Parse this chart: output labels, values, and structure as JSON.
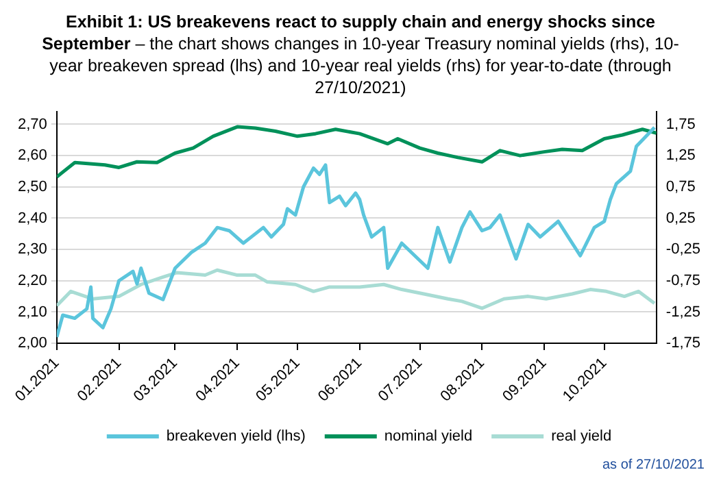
{
  "chart_data": {
    "type": "line",
    "title": "Exhibit 1: US breakevens react to supply chain and energy shocks since September",
    "subtitle": "– the chart shows changes in 10-year Treasury nominal yields (rhs), 10-year breakeven spread (lhs) and 10-year real yields (rhs) for year-to-date (through 27/10/2021)",
    "annotations": [
      "as of 27/10/2021"
    ],
    "xlim": [
      "2021-01-01",
      "2021-10-27"
    ],
    "xticks": [
      {
        "value": "2021-01-01",
        "label": "01.2021"
      },
      {
        "value": "2021-02-01",
        "label": "02.2021"
      },
      {
        "value": "2021-03-01",
        "label": "03.2021"
      },
      {
        "value": "2021-04-01",
        "label": "04.2021"
      },
      {
        "value": "2021-05-01",
        "label": "05.2021"
      },
      {
        "value": "2021-06-01",
        "label": "06.2021"
      },
      {
        "value": "2021-07-01",
        "label": "07.2021"
      },
      {
        "value": "2021-08-01",
        "label": "08.2021"
      },
      {
        "value": "2021-09-01",
        "label": "09.2021"
      },
      {
        "value": "2021-10-01",
        "label": "10.2021"
      }
    ],
    "ylim": [
      2.0,
      2.74
    ],
    "yticks": [
      {
        "value": 2.0,
        "label": "2,00"
      },
      {
        "value": 2.1,
        "label": "2,10"
      },
      {
        "value": 2.2,
        "label": "2,20"
      },
      {
        "value": 2.3,
        "label": "2,30"
      },
      {
        "value": 2.4,
        "label": "2,40"
      },
      {
        "value": 2.5,
        "label": "2,50"
      },
      {
        "value": 2.6,
        "label": "2,60"
      },
      {
        "value": 2.7,
        "label": "2,70"
      }
    ],
    "y2lim": [
      -1.75,
      1.95
    ],
    "y2ticks": [
      {
        "value": -1.75,
        "label": "-1,75"
      },
      {
        "value": -1.25,
        "label": "-1,25"
      },
      {
        "value": -0.75,
        "label": "-0,75"
      },
      {
        "value": -0.25,
        "label": "-0,25"
      },
      {
        "value": 0.25,
        "label": "0,25"
      },
      {
        "value": 0.75,
        "label": "0,75"
      },
      {
        "value": 1.25,
        "label": "1,25"
      },
      {
        "value": 1.75,
        "label": "1,75"
      }
    ],
    "grid": "y",
    "legend": "bottom",
    "marker": "none",
    "line_style": "solid",
    "series": [
      {
        "name": "breakeven yield (lhs)",
        "color": "#5bc5dc",
        "x": [
          "2021-01-01",
          "2021-01-04",
          "2021-01-10",
          "2021-01-16",
          "2021-01-18",
          "2021-01-19",
          "2021-01-24",
          "2021-01-28",
          "2021-02-01",
          "2021-02-08",
          "2021-02-10",
          "2021-02-12",
          "2021-02-16",
          "2021-02-23",
          "2021-03-01",
          "2021-03-09",
          "2021-03-16",
          "2021-03-22",
          "2021-03-28",
          "2021-04-04",
          "2021-04-08",
          "2021-04-14",
          "2021-04-18",
          "2021-04-24",
          "2021-04-26",
          "2021-04-30",
          "2021-05-04",
          "2021-05-09",
          "2021-05-12",
          "2021-05-15",
          "2021-05-17",
          "2021-05-22",
          "2021-05-25",
          "2021-05-30",
          "2021-06-01",
          "2021-06-03",
          "2021-06-07",
          "2021-06-13",
          "2021-06-15",
          "2021-06-22",
          "2021-07-05",
          "2021-07-10",
          "2021-07-16",
          "2021-07-22",
          "2021-07-26",
          "2021-08-01",
          "2021-08-05",
          "2021-08-10",
          "2021-08-18",
          "2021-08-24",
          "2021-08-30",
          "2021-09-08",
          "2021-09-13",
          "2021-09-19",
          "2021-09-26",
          "2021-10-01",
          "2021-10-04",
          "2021-10-07",
          "2021-10-14",
          "2021-10-17",
          "2021-10-23",
          "2021-10-26"
        ],
        "values": [
          2.02,
          2.09,
          2.08,
          2.11,
          2.18,
          2.08,
          2.05,
          2.11,
          2.2,
          2.23,
          2.19,
          2.24,
          2.16,
          2.14,
          2.24,
          2.29,
          2.32,
          2.37,
          2.36,
          2.32,
          2.34,
          2.37,
          2.34,
          2.38,
          2.43,
          2.41,
          2.5,
          2.56,
          2.54,
          2.57,
          2.45,
          2.47,
          2.44,
          2.48,
          2.46,
          2.41,
          2.34,
          2.37,
          2.24,
          2.32,
          2.24,
          2.37,
          2.26,
          2.37,
          2.42,
          2.36,
          2.37,
          2.41,
          2.27,
          2.38,
          2.34,
          2.39,
          2.34,
          2.28,
          2.37,
          2.39,
          2.46,
          2.51,
          2.55,
          2.63,
          2.67,
          2.69
        ]
      },
      {
        "name": "nominal yield",
        "color": "#00915a",
        "axis": "y2",
        "x": [
          "2021-01-01",
          "2021-01-10",
          "2021-01-25",
          "2021-02-01",
          "2021-02-10",
          "2021-02-20",
          "2021-03-01",
          "2021-03-10",
          "2021-03-20",
          "2021-04-01",
          "2021-04-10",
          "2021-04-20",
          "2021-05-01",
          "2021-05-10",
          "2021-05-20",
          "2021-06-01",
          "2021-06-15",
          "2021-06-20",
          "2021-07-01",
          "2021-07-10",
          "2021-07-20",
          "2021-08-01",
          "2021-08-10",
          "2021-08-20",
          "2021-09-01",
          "2021-09-10",
          "2021-09-20",
          "2021-10-01",
          "2021-10-10",
          "2021-10-20",
          "2021-10-27"
        ],
        "values": [
          0.91,
          1.14,
          1.1,
          1.06,
          1.15,
          1.14,
          1.29,
          1.37,
          1.56,
          1.71,
          1.69,
          1.64,
          1.56,
          1.6,
          1.67,
          1.6,
          1.44,
          1.52,
          1.37,
          1.29,
          1.22,
          1.15,
          1.33,
          1.25,
          1.31,
          1.35,
          1.33,
          1.52,
          1.58,
          1.67,
          1.61
        ]
      },
      {
        "name": "real yield",
        "color": "#a8dcd4",
        "axis": "y2",
        "x": [
          "2021-01-01",
          "2021-01-08",
          "2021-01-19",
          "2021-02-01",
          "2021-02-12",
          "2021-02-23",
          "2021-03-02",
          "2021-03-16",
          "2021-03-22",
          "2021-04-01",
          "2021-04-10",
          "2021-04-16",
          "2021-04-30",
          "2021-05-09",
          "2021-05-17",
          "2021-06-01",
          "2021-06-13",
          "2021-06-22",
          "2021-07-03",
          "2021-07-15",
          "2021-07-22",
          "2021-08-01",
          "2021-08-12",
          "2021-08-24",
          "2021-09-02",
          "2021-09-15",
          "2021-09-24",
          "2021-10-02",
          "2021-10-11",
          "2021-10-18",
          "2021-10-26"
        ],
        "values": [
          -1.15,
          -0.92,
          -1.04,
          -1.0,
          -0.81,
          -0.69,
          -0.62,
          -0.66,
          -0.58,
          -0.66,
          -0.66,
          -0.77,
          -0.81,
          -0.92,
          -0.85,
          -0.85,
          -0.81,
          -0.89,
          -0.96,
          -1.04,
          -1.08,
          -1.19,
          -1.04,
          -1.0,
          -1.04,
          -0.96,
          -0.89,
          -0.92,
          -1.0,
          -0.92,
          -1.11
        ]
      }
    ]
  }
}
